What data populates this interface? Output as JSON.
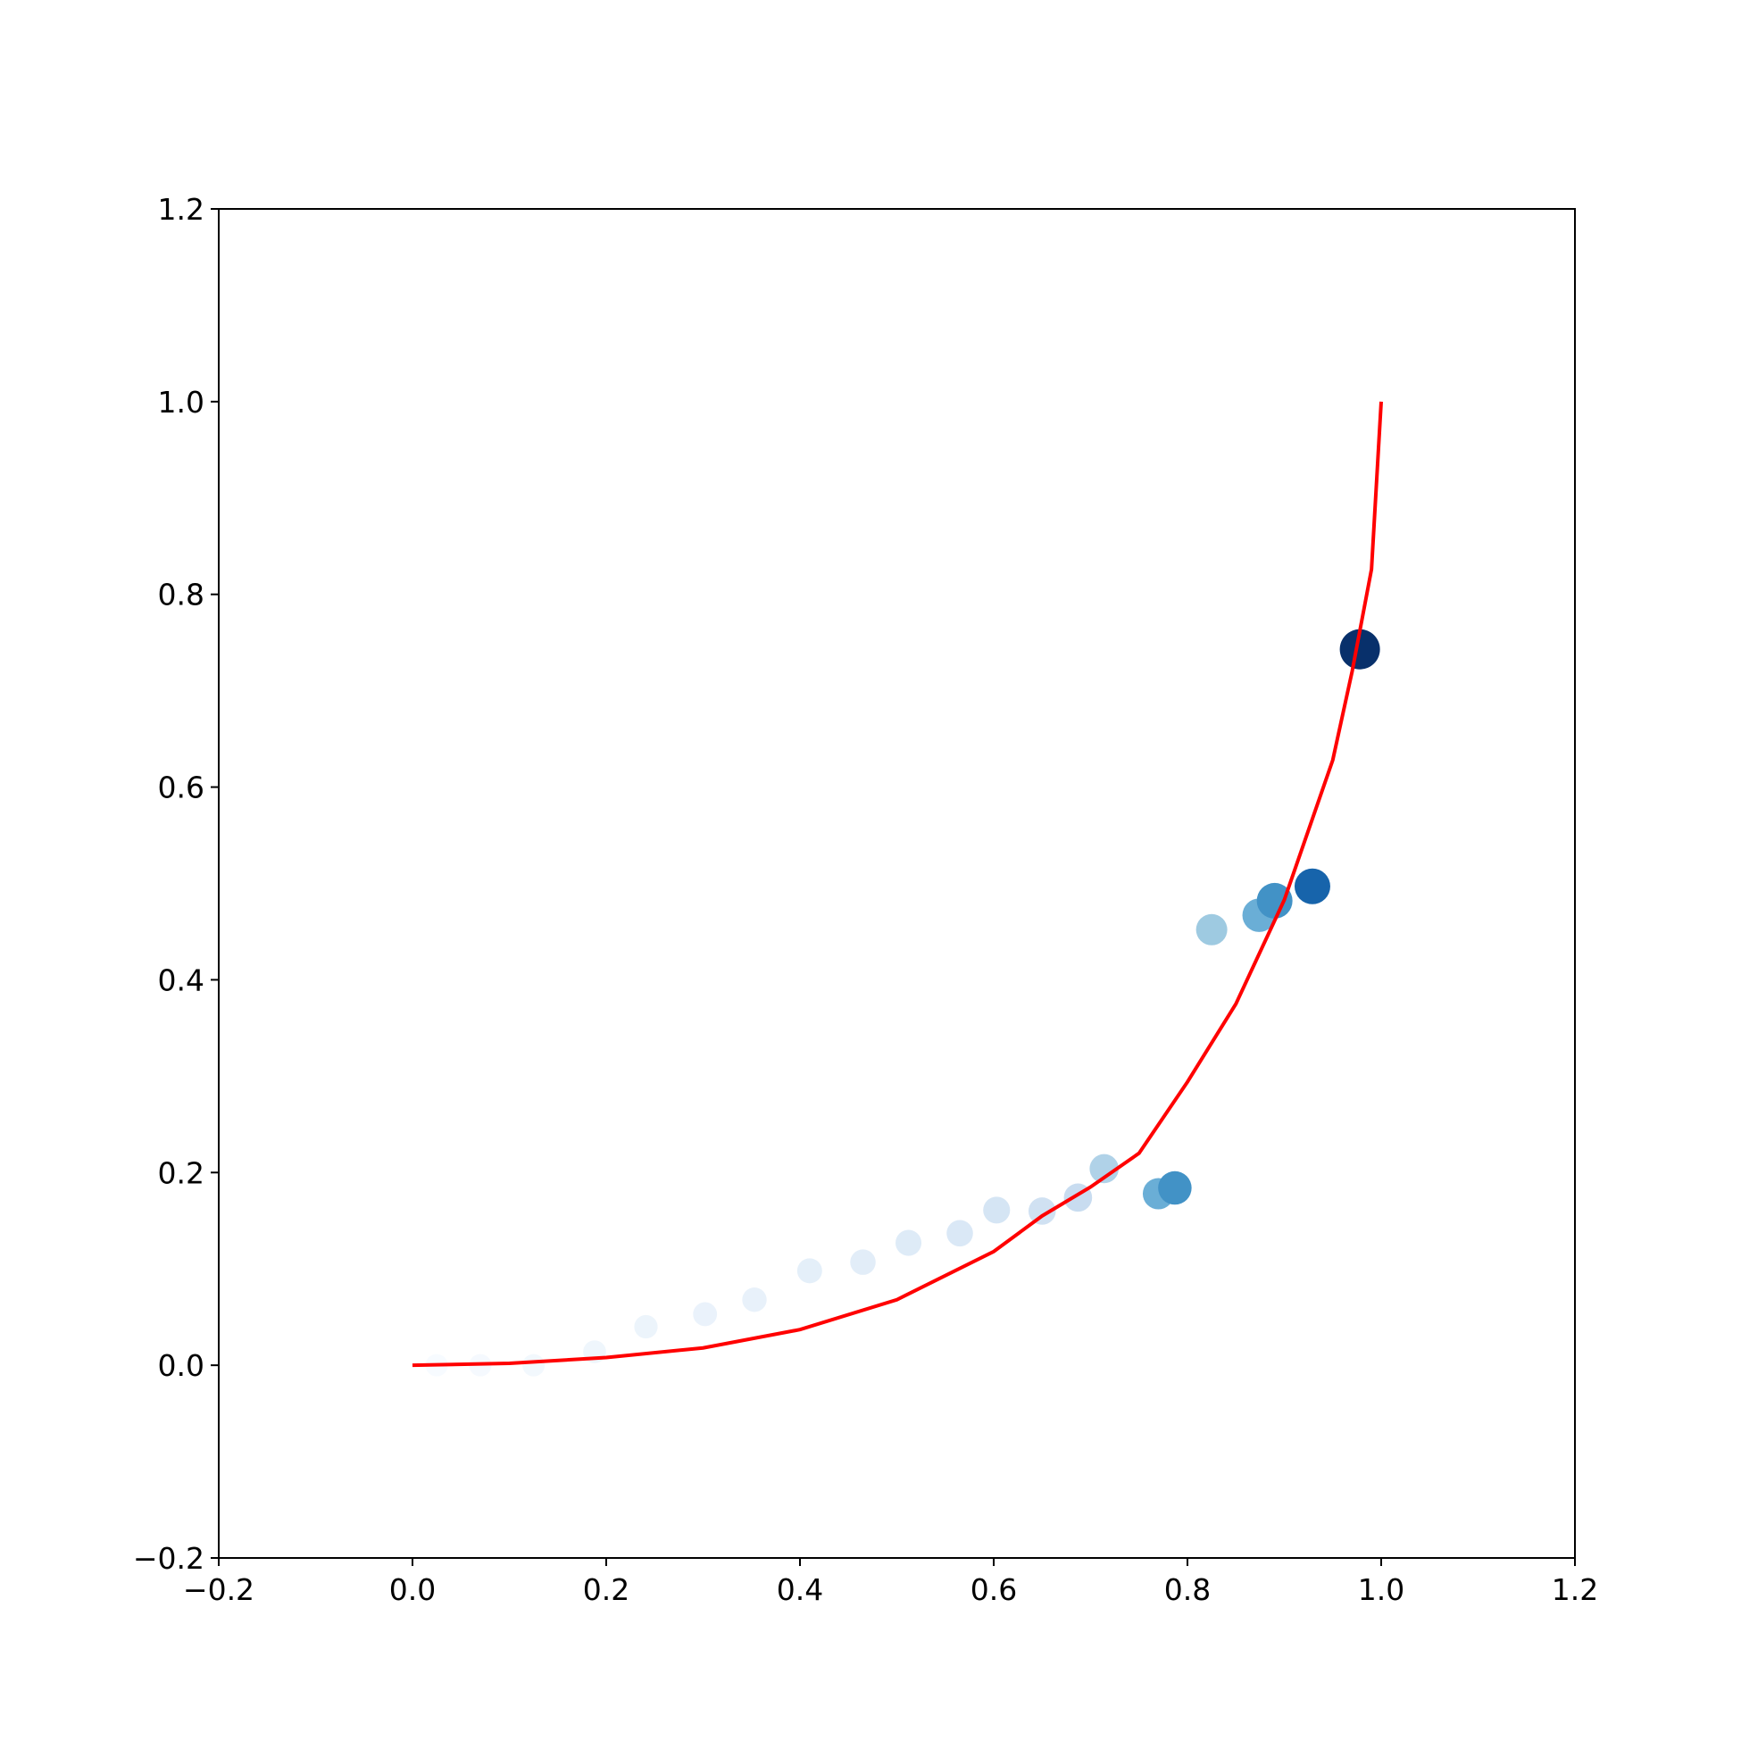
{
  "chart_data": {
    "type": "scatter",
    "xlim": [
      -0.2,
      1.2
    ],
    "ylim": [
      -0.2,
      1.2
    ],
    "xticks": [
      {
        "value": -0.2,
        "label": "−0.2"
      },
      {
        "value": 0,
        "label": "0.0"
      },
      0.2,
      0.4,
      0.6,
      0.8,
      {
        "value": 1,
        "label": "1.0"
      },
      1.2
    ],
    "yticks": [
      {
        "value": -0.2,
        "label": "−0.2"
      },
      {
        "value": 0,
        "label": "0.0"
      },
      0.2,
      0.4,
      0.6,
      0.8,
      {
        "value": 1,
        "label": "1.0"
      },
      1.2
    ],
    "series": [
      {
        "type": "scatter",
        "x": [
          0.025,
          0.07,
          0.125,
          0.188,
          0.241,
          0.302,
          0.353,
          0.41,
          0.465,
          0.512,
          0.565,
          0.603,
          0.65,
          0.687,
          0.714,
          0.77,
          0.787,
          0.825,
          0.874,
          0.89,
          0.929,
          0.978
        ],
        "y": [
          0.0,
          0.0,
          0.0,
          0.014,
          0.04,
          0.053,
          0.068,
          0.098,
          0.107,
          0.127,
          0.137,
          0.161,
          0.16,
          0.174,
          0.204,
          0.178,
          0.184,
          0.452,
          0.467,
          0.482,
          0.497,
          0.743
        ],
        "sizes": [
          100,
          100,
          100,
          105,
          110,
          115,
          120,
          125,
          130,
          135,
          140,
          145,
          150,
          160,
          170,
          196,
          225,
          196,
          225,
          256,
          256,
          324
        ],
        "colors": [
          "#f7fbff",
          "#f5f9fe",
          "#f2f8fd",
          "#eff6fc",
          "#ecf4fb",
          "#eaf2fb",
          "#e8f1fa",
          "#e4eff9",
          "#e2edf8",
          "#deebf7",
          "#dae8f6",
          "#d5e5f4",
          "#d0e1f2",
          "#c8dcf0",
          "#b0d2e8",
          "#6aaed6",
          "#4292c6",
          "#9ecae1",
          "#6aaed6",
          "#4292c6",
          "#1764ab",
          "#08306b"
        ]
      },
      {
        "type": "line",
        "color": "#ff0000",
        "x": [
          0.0,
          0.1,
          0.2,
          0.3,
          0.4,
          0.5,
          0.6,
          0.65,
          0.7,
          0.75,
          0.8,
          0.85,
          0.9,
          0.95,
          0.97,
          0.99,
          1.0
        ],
        "y": [
          0.0,
          0.002,
          0.008,
          0.018,
          0.037,
          0.068,
          0.118,
          0.155,
          0.185,
          0.22,
          0.294,
          0.375,
          0.483,
          0.628,
          0.72,
          0.826,
          1.0
        ]
      }
    ]
  }
}
